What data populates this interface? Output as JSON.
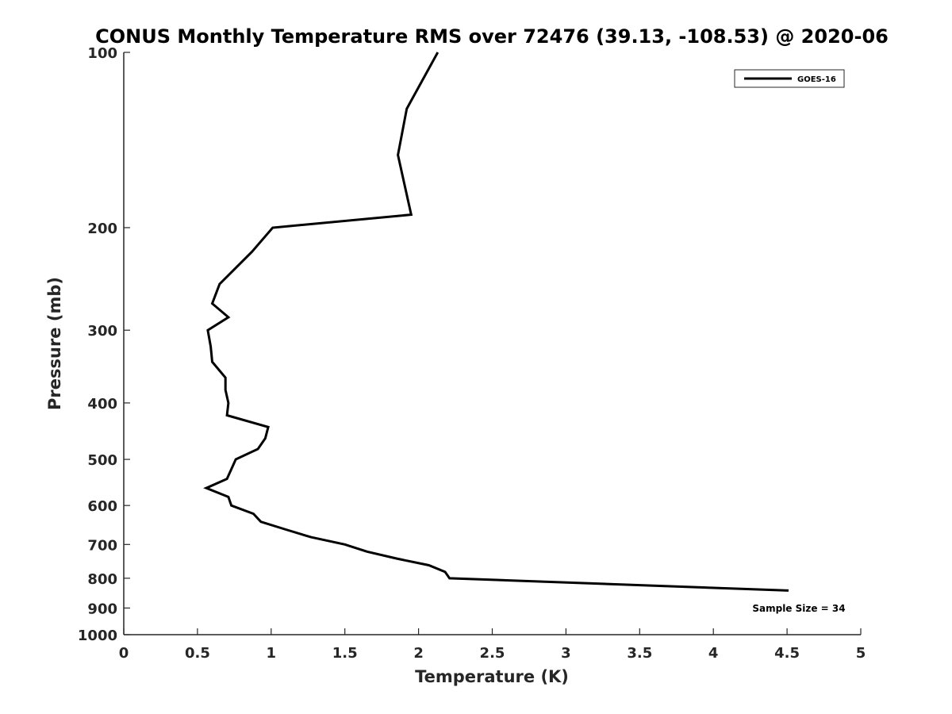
{
  "chart_data": {
    "type": "line",
    "title": "CONUS Monthly Temperature RMS over 72476 (39.13, -108.53) @ 2020-06",
    "xlabel": "Temperature (K)",
    "ylabel": "Pressure (mb)",
    "xlim": [
      0,
      5
    ],
    "ylim": [
      100,
      1000
    ],
    "y_scale": "log",
    "y_reversed": true,
    "grid": false,
    "legend_position": "top-right",
    "x_ticks": [
      0,
      0.5,
      1,
      1.5,
      2,
      2.5,
      3,
      3.5,
      4,
      4.5,
      5
    ],
    "x_tick_labels": [
      "0",
      "0.5",
      "1",
      "1.5",
      "2",
      "2.5",
      "3",
      "3.5",
      "4",
      "4.5",
      "5"
    ],
    "y_ticks": [
      100,
      200,
      300,
      400,
      500,
      600,
      700,
      800,
      900,
      1000
    ],
    "y_tick_labels": [
      "100",
      "200",
      "300",
      "400",
      "500",
      "600",
      "700",
      "800",
      "900",
      "1000"
    ],
    "series": [
      {
        "name": "GOES-16",
        "color": "#000000",
        "points": [
          {
            "x": 2.13,
            "p": 100
          },
          {
            "x": 1.92,
            "p": 125
          },
          {
            "x": 1.86,
            "p": 150
          },
          {
            "x": 1.95,
            "p": 190
          },
          {
            "x": 1.01,
            "p": 200
          },
          {
            "x": 0.87,
            "p": 220
          },
          {
            "x": 0.65,
            "p": 250
          },
          {
            "x": 0.6,
            "p": 270
          },
          {
            "x": 0.71,
            "p": 285
          },
          {
            "x": 0.57,
            "p": 300
          },
          {
            "x": 0.59,
            "p": 320
          },
          {
            "x": 0.6,
            "p": 340
          },
          {
            "x": 0.69,
            "p": 362
          },
          {
            "x": 0.69,
            "p": 380
          },
          {
            "x": 0.71,
            "p": 400
          },
          {
            "x": 0.7,
            "p": 420
          },
          {
            "x": 0.98,
            "p": 440
          },
          {
            "x": 0.96,
            "p": 460
          },
          {
            "x": 0.91,
            "p": 480
          },
          {
            "x": 0.76,
            "p": 500
          },
          {
            "x": 0.7,
            "p": 540
          },
          {
            "x": 0.56,
            "p": 560
          },
          {
            "x": 0.71,
            "p": 580
          },
          {
            "x": 0.73,
            "p": 600
          },
          {
            "x": 0.88,
            "p": 620
          },
          {
            "x": 0.93,
            "p": 640
          },
          {
            "x": 1.1,
            "p": 660
          },
          {
            "x": 1.27,
            "p": 680
          },
          {
            "x": 1.5,
            "p": 700
          },
          {
            "x": 1.65,
            "p": 720
          },
          {
            "x": 1.85,
            "p": 740
          },
          {
            "x": 2.07,
            "p": 760
          },
          {
            "x": 2.18,
            "p": 780
          },
          {
            "x": 2.21,
            "p": 800
          },
          {
            "x": 4.51,
            "p": 840
          }
        ]
      }
    ],
    "annotations": [
      "Sample Size = 34"
    ]
  }
}
